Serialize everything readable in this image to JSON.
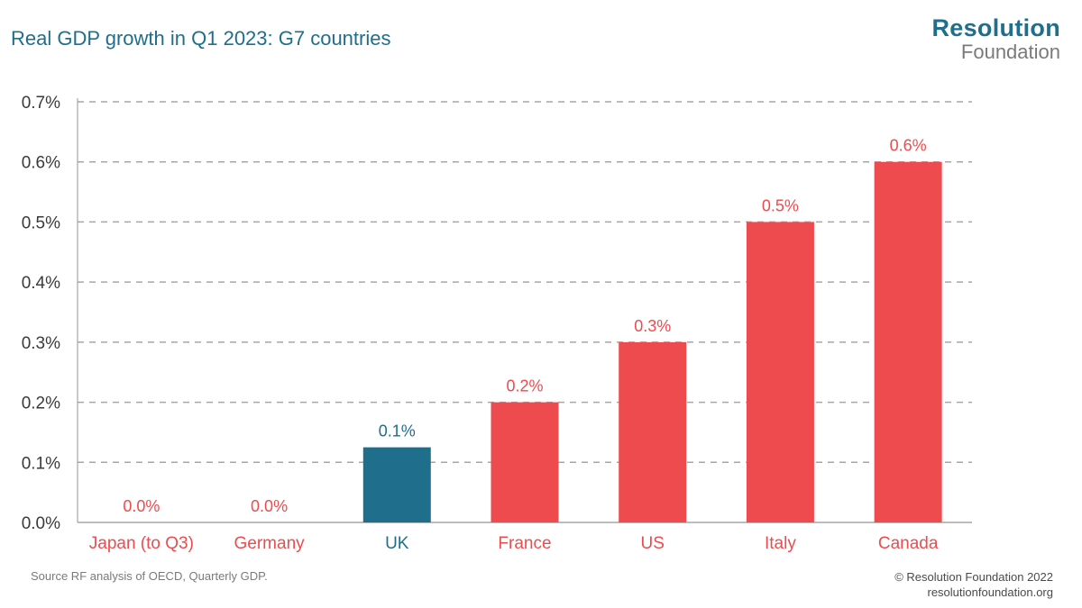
{
  "header": {
    "title": "Real GDP growth in Q1 2023: G7 countries",
    "logo_line1": "Resolution",
    "logo_line2": "Foundation"
  },
  "footer": {
    "source": "Source RF analysis of OECD, Quarterly GDP.",
    "copyright": "© Resolution Foundation 2022",
    "website": "resolutionfoundation.org"
  },
  "colors": {
    "highlight": "#1f6e8c",
    "default": "#ee4b4e",
    "axis_text": "#3a3a3a",
    "grid": "#a6a6a6"
  },
  "chart_data": {
    "type": "bar",
    "title": "Real GDP growth in Q1 2023: G7 countries",
    "categories": [
      "Japan (to Q3)",
      "Germany",
      "UK",
      "France",
      "US",
      "Italy",
      "Canada"
    ],
    "values": [
      0.0,
      0.0,
      0.125,
      0.2,
      0.3,
      0.5,
      0.6
    ],
    "data_labels": [
      "0.0%",
      "0.0%",
      "0.1%",
      "0.2%",
      "0.3%",
      "0.5%",
      "0.6%"
    ],
    "highlight_category": "UK",
    "ylim": [
      0,
      0.7
    ],
    "yticks": [
      0.0,
      0.1,
      0.2,
      0.3,
      0.4,
      0.5,
      0.6,
      0.7
    ],
    "ytick_labels": [
      "0.0%",
      "0.1%",
      "0.2%",
      "0.3%",
      "0.4%",
      "0.5%",
      "0.6%",
      "0.7%"
    ],
    "grid": "dashed horizontal",
    "xlabel": "",
    "ylabel": ""
  }
}
